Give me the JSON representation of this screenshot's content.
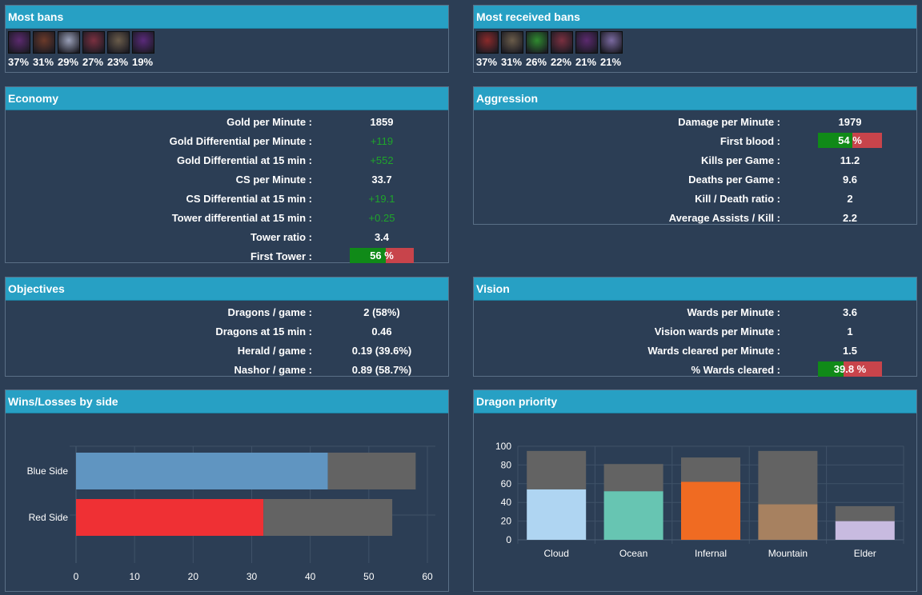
{
  "most_bans": {
    "title": "Most bans",
    "champions": [
      {
        "icon": "champion-portrait-1",
        "pct": "37%",
        "color": "#5b2a6e"
      },
      {
        "icon": "champion-portrait-2",
        "pct": "31%",
        "color": "#6b3a2a"
      },
      {
        "icon": "champion-portrait-3",
        "pct": "29%",
        "color": "#9aa0b8"
      },
      {
        "icon": "champion-portrait-4",
        "pct": "27%",
        "color": "#7a3040"
      },
      {
        "icon": "champion-portrait-5",
        "pct": "23%",
        "color": "#6a5c4a"
      },
      {
        "icon": "champion-portrait-6",
        "pct": "19%",
        "color": "#5a2a7a"
      }
    ]
  },
  "most_received_bans": {
    "title": "Most received bans",
    "champions": [
      {
        "icon": "champion-portrait-1",
        "pct": "37%",
        "color": "#8a2a2a"
      },
      {
        "icon": "champion-portrait-2",
        "pct": "31%",
        "color": "#6a5c4a"
      },
      {
        "icon": "champion-portrait-3",
        "pct": "26%",
        "color": "#2f8a2f"
      },
      {
        "icon": "champion-portrait-4",
        "pct": "22%",
        "color": "#7a3040"
      },
      {
        "icon": "champion-portrait-5",
        "pct": "21%",
        "color": "#5b2a6e"
      },
      {
        "icon": "champion-portrait-6",
        "pct": "21%",
        "color": "#7a6aa0"
      }
    ]
  },
  "economy": {
    "title": "Economy",
    "rows": [
      {
        "label": "Gold per Minute :",
        "value": "1859",
        "green": false
      },
      {
        "label": "Gold Differential per Minute :",
        "value": "+119",
        "green": true
      },
      {
        "label": "Gold Differential at 15 min :",
        "value": "+552",
        "green": true
      },
      {
        "label": "CS per Minute :",
        "value": "33.7",
        "green": false
      },
      {
        "label": "CS Differential at 15 min :",
        "value": "+19.1",
        "green": true
      },
      {
        "label": "Tower differential at 15 min :",
        "value": "+0.25",
        "green": true
      },
      {
        "label": "Tower ratio :",
        "value": "3.4",
        "green": false
      }
    ],
    "bar_row": {
      "label": "First Tower :",
      "value_text": "56 %",
      "percent": 56
    }
  },
  "aggression": {
    "title": "Aggression",
    "row0": {
      "label": "Damage per Minute :",
      "value": "1979"
    },
    "bar_row": {
      "label": "First blood :",
      "value_text": "54 %",
      "percent": 54
    },
    "rows": [
      {
        "label": "Kills per Game :",
        "value": "11.2"
      },
      {
        "label": "Deaths per Game :",
        "value": "9.6"
      },
      {
        "label": "Kill / Death ratio :",
        "value": "2"
      },
      {
        "label": "Average Assists / Kill :",
        "value": "2.2"
      }
    ]
  },
  "objectives": {
    "title": "Objectives",
    "rows": [
      {
        "label": "Dragons / game :",
        "value": "2 (58%)"
      },
      {
        "label": "Dragons at 15 min :",
        "value": "0.46"
      },
      {
        "label": "Herald / game :",
        "value": "0.19 (39.6%)"
      },
      {
        "label": "Nashor / game :",
        "value": "0.89 (58.7%)"
      }
    ]
  },
  "vision": {
    "title": "Vision",
    "rows": [
      {
        "label": "Wards per Minute :",
        "value": "3.6"
      },
      {
        "label": "Vision wards per Minute :",
        "value": "1"
      },
      {
        "label": "Wards cleared per Minute :",
        "value": "1.5"
      }
    ],
    "bar_row": {
      "label": "% Wards cleared :",
      "value_text": "39.8 %",
      "percent": 39.8
    }
  },
  "wins_losses": {
    "title": "Wins/Losses by side"
  },
  "dragon_priority": {
    "title": "Dragon priority"
  },
  "chart_data": [
    {
      "type": "bar",
      "orientation": "horizontal",
      "stacked": true,
      "categories": [
        "Blue Side",
        "Red Side"
      ],
      "series": [
        {
          "values": [
            43,
            32
          ],
          "colors": [
            "#6095c1",
            "#ef3034"
          ]
        },
        {
          "values": [
            15,
            22
          ],
          "color": "#636363"
        }
      ],
      "xlim": [
        0,
        60
      ],
      "xticks": [
        0,
        10,
        20,
        30,
        40,
        50,
        60
      ],
      "grid": true
    },
    {
      "type": "bar",
      "stacked": true,
      "categories": [
        "Cloud",
        "Ocean",
        "Infernal",
        "Mountain",
        "Elder"
      ],
      "series": [
        {
          "values": [
            54,
            52,
            62,
            38,
            20
          ],
          "colors": [
            "#afd5f2",
            "#67c5b2",
            "#f06b22",
            "#a78160",
            "#c8bbe0"
          ]
        },
        {
          "values": [
            41,
            29,
            26,
            57,
            16
          ],
          "color": "#636363"
        }
      ],
      "ylim": [
        0,
        100
      ],
      "yticks": [
        0,
        20,
        40,
        60,
        80,
        100
      ],
      "grid": true
    }
  ]
}
